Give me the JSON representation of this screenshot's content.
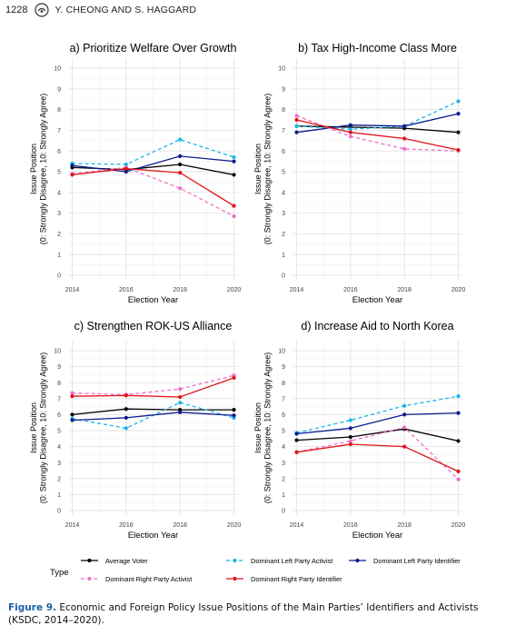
{
  "header": {
    "page_number": "1228",
    "authors": "Y. CHEONG AND S. HAGGARD"
  },
  "caption": {
    "label": "Figure 9.",
    "text": " Economic and Foreign Policy Issue Positions of the Main Parties’ Identifiers and Activists (KSDC, 2014–2020)."
  },
  "colors": {
    "average_voter": "#000000",
    "dominant_left_activist": "#1ab6e6",
    "dominant_left_identifier": "#0a1a8c",
    "dominant_right_activist": "#ef6fc8",
    "dominant_right_identifier": "#e0141a"
  },
  "legend": {
    "title": "Type",
    "placement": "bottom",
    "entries": [
      {
        "key": "average_voter",
        "label": "Average Voter",
        "dashed": false
      },
      {
        "key": "dominant_left_activist",
        "label": "Dominant Left Party Activist",
        "dashed": true
      },
      {
        "key": "dominant_left_identifier",
        "label": "Dominant Left Party Identifier",
        "dashed": false
      },
      {
        "key": "dominant_right_activist",
        "label": "Dominant Right Party Activist",
        "dashed": true
      },
      {
        "key": "dominant_right_identifier",
        "label": "Dominant Right Party Identifier",
        "dashed": false
      }
    ]
  },
  "chart_data": [
    {
      "type": "line",
      "title": "a) Prioritize Welfare Over Growth",
      "xlabel": "Election Year",
      "ylabel": [
        "Issue Position",
        "(0: Strongly Disagree, 10: Strongly Agree)"
      ],
      "x": [
        2014,
        2016,
        2018,
        2020
      ],
      "xlim": [
        2014,
        2020
      ],
      "ylim": [
        0,
        10
      ],
      "grid": true,
      "series": [
        {
          "key": "average_voter",
          "name": "Average Voter",
          "values": [
            5.2,
            5.1,
            5.35,
            4.85
          ]
        },
        {
          "key": "dominant_left_activist",
          "name": "Dominant Left Party Activist",
          "values": [
            5.4,
            5.35,
            6.55,
            5.7
          ]
        },
        {
          "key": "dominant_left_identifier",
          "name": "Dominant Left Party Identifier",
          "values": [
            5.3,
            5.0,
            5.75,
            5.5
          ]
        },
        {
          "key": "dominant_right_activist",
          "name": "Dominant Right Party Activist",
          "values": [
            4.9,
            5.2,
            4.2,
            2.85
          ]
        },
        {
          "key": "dominant_right_identifier",
          "name": "Dominant Right Party Identifier",
          "values": [
            4.85,
            5.15,
            4.95,
            3.35
          ]
        }
      ]
    },
    {
      "type": "line",
      "title": "b) Tax High-Income Class More",
      "xlabel": "Election Year",
      "ylabel": [
        "Issue Position",
        "(0: Strongly Disagree, 10: Strongly Agree)"
      ],
      "x": [
        2014,
        2016,
        2018,
        2020
      ],
      "xlim": [
        2014,
        2020
      ],
      "ylim": [
        0,
        10
      ],
      "grid": true,
      "series": [
        {
          "key": "average_voter",
          "name": "Average Voter",
          "values": [
            7.2,
            7.15,
            7.1,
            6.9
          ]
        },
        {
          "key": "dominant_left_activist",
          "name": "Dominant Left Party Activist",
          "values": [
            7.2,
            7.05,
            7.2,
            8.4
          ]
        },
        {
          "key": "dominant_left_identifier",
          "name": "Dominant Left Party Identifier",
          "values": [
            6.9,
            7.25,
            7.2,
            7.8
          ]
        },
        {
          "key": "dominant_right_activist",
          "name": "Dominant Right Party Activist",
          "values": [
            7.7,
            6.7,
            6.1,
            6.0
          ]
        },
        {
          "key": "dominant_right_identifier",
          "name": "Dominant Right Party Identifier",
          "values": [
            7.5,
            6.9,
            6.6,
            6.05
          ]
        }
      ]
    },
    {
      "type": "line",
      "title": "c) Strengthen ROK-US Alliance",
      "xlabel": "Election Year",
      "ylabel": [
        "Issue Position",
        "(0: Strongly Disagree, 10: Strongly Agree)"
      ],
      "x": [
        2014,
        2016,
        2018,
        2020
      ],
      "xlim": [
        2014,
        2020
      ],
      "ylim": [
        0,
        10
      ],
      "grid": true,
      "series": [
        {
          "key": "average_voter",
          "name": "Average Voter",
          "values": [
            6.0,
            6.35,
            6.3,
            6.3
          ]
        },
        {
          "key": "dominant_left_activist",
          "name": "Dominant Left Party Activist",
          "values": [
            5.75,
            5.15,
            6.75,
            5.8
          ]
        },
        {
          "key": "dominant_left_identifier",
          "name": "Dominant Left Party Identifier",
          "values": [
            5.65,
            5.8,
            6.15,
            5.95
          ]
        },
        {
          "key": "dominant_right_activist",
          "name": "Dominant Right Party Activist",
          "values": [
            7.35,
            7.25,
            7.6,
            8.45
          ]
        },
        {
          "key": "dominant_right_identifier",
          "name": "Dominant Right Party Identifier",
          "values": [
            7.15,
            7.2,
            7.1,
            8.3
          ]
        }
      ]
    },
    {
      "type": "line",
      "title": "d) Increase Aid to North Korea",
      "xlabel": "Election Year",
      "ylabel": [
        "Issue Position",
        "(0: Strongly Disagree, 10: Strongly Agree)"
      ],
      "x": [
        2014,
        2016,
        2018,
        2020
      ],
      "xlim": [
        2014,
        2020
      ],
      "ylim": [
        0,
        10
      ],
      "grid": true,
      "series": [
        {
          "key": "average_voter",
          "name": "Average Voter",
          "values": [
            4.4,
            4.6,
            5.1,
            4.35
          ]
        },
        {
          "key": "dominant_left_activist",
          "name": "Dominant Left Party Activist",
          "values": [
            4.85,
            5.65,
            6.55,
            7.15
          ]
        },
        {
          "key": "dominant_left_identifier",
          "name": "Dominant Left Party Identifier",
          "values": [
            4.8,
            5.15,
            6.0,
            6.1
          ]
        },
        {
          "key": "dominant_right_activist",
          "name": "Dominant Right Party Activist",
          "values": [
            3.65,
            4.35,
            5.2,
            1.95
          ]
        },
        {
          "key": "dominant_right_identifier",
          "name": "Dominant Right Party Identifier",
          "values": [
            3.65,
            4.15,
            4.0,
            2.45
          ]
        }
      ]
    }
  ]
}
